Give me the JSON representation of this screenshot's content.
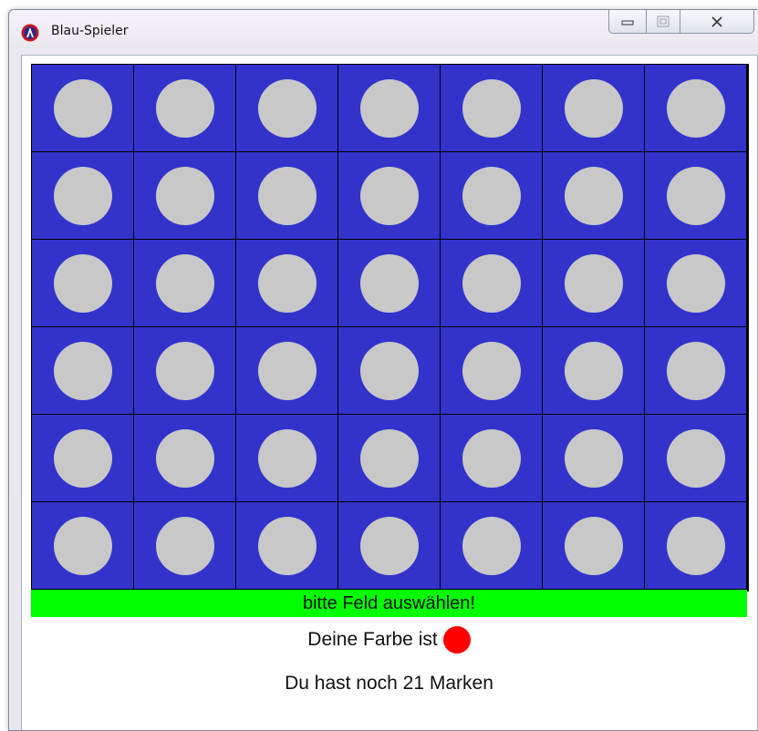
{
  "window": {
    "title": "Blau-Spieler",
    "controls": {
      "minimize_icon": "minimize-icon",
      "maximize_icon": "maximize-icon",
      "close_icon": "close-icon"
    }
  },
  "board": {
    "columns": 7,
    "rows": 6,
    "cell_color": "#3333cc",
    "empty_disc_color": "#c8c8c8",
    "cells": [
      [
        "empty",
        "empty",
        "empty",
        "empty",
        "empty",
        "empty",
        "empty"
      ],
      [
        "empty",
        "empty",
        "empty",
        "empty",
        "empty",
        "empty",
        "empty"
      ],
      [
        "empty",
        "empty",
        "empty",
        "empty",
        "empty",
        "empty",
        "empty"
      ],
      [
        "empty",
        "empty",
        "empty",
        "empty",
        "empty",
        "empty",
        "empty"
      ],
      [
        "empty",
        "empty",
        "empty",
        "empty",
        "empty",
        "empty",
        "empty"
      ],
      [
        "empty",
        "empty",
        "empty",
        "empty",
        "empty",
        "empty",
        "empty"
      ]
    ]
  },
  "status": {
    "message": "bitte Feld auswählen!",
    "background": "#00ff00"
  },
  "player": {
    "color_label": "Deine Farbe ist",
    "color": "#ff0000",
    "markers_text": "Du hast noch 21 Marken"
  }
}
